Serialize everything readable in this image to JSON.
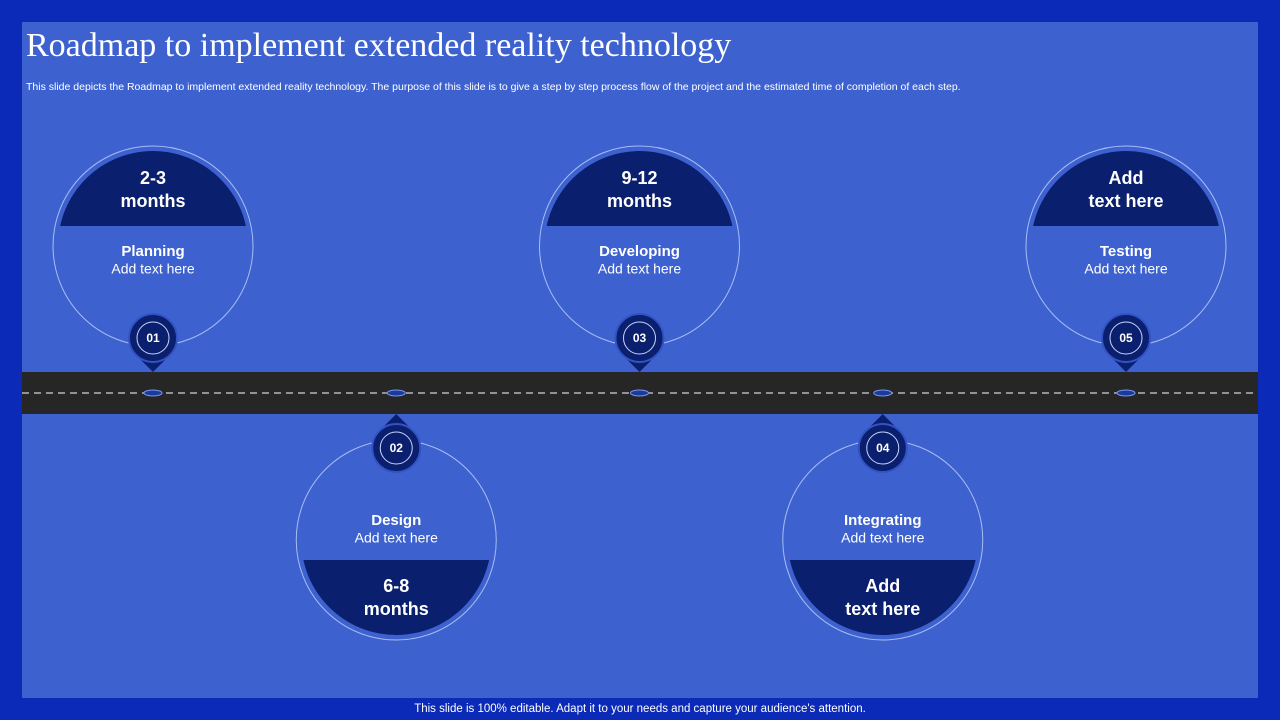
{
  "header": {
    "title": "Roadmap to implement extended reality technology",
    "subtitle": "This slide depicts the Roadmap to implement extended reality technology. The purpose of this slide is to give a step by step process flow of the project and the estimated time of completion of each step."
  },
  "steps": [
    {
      "number": "01",
      "name": "Planning",
      "text": "Add text here",
      "duration": [
        "2-3",
        "months"
      ]
    },
    {
      "number": "02",
      "name": "Design",
      "text": "Add text here",
      "duration": [
        "6-8",
        "months"
      ]
    },
    {
      "number": "03",
      "name": "Developing",
      "text": "Add text here",
      "duration": [
        "9-12",
        "months"
      ]
    },
    {
      "number": "04",
      "name": "Integrating",
      "text": "Add text here",
      "duration": [
        "Add",
        "text here"
      ]
    },
    {
      "number": "05",
      "name": "Testing",
      "text": "Add text here",
      "duration": [
        "Add",
        "text here"
      ]
    }
  ],
  "footer": "This slide is 100% editable. Adapt it to your needs and capture your audience's attention."
}
